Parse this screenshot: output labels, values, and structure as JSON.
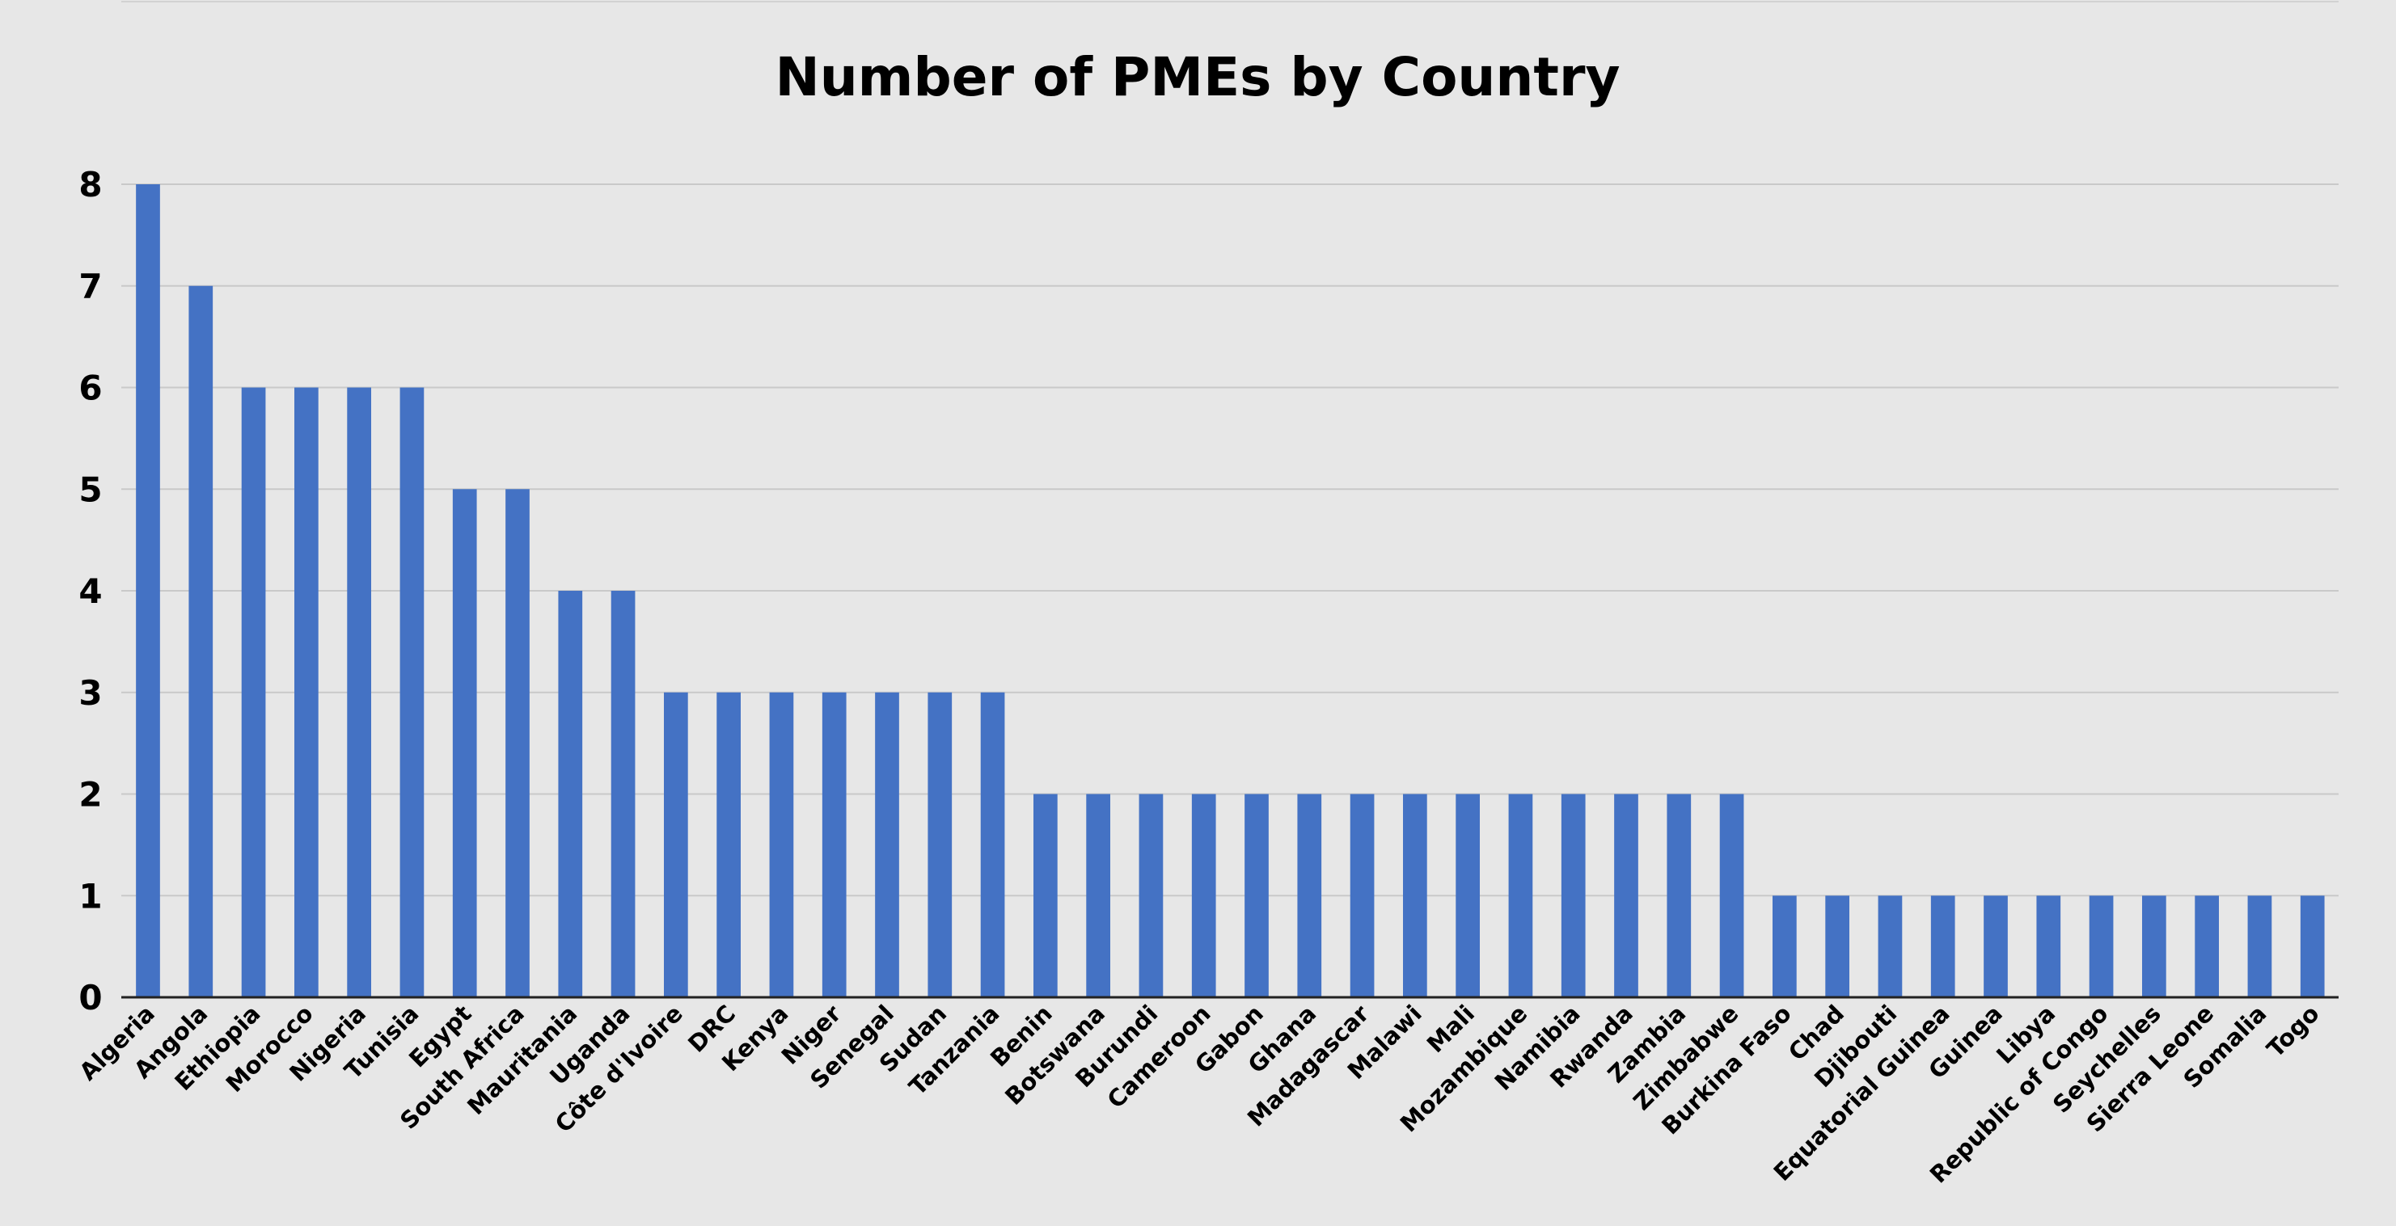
{
  "chart_data": {
    "type": "bar",
    "title": "Number of PMEs by Country",
    "xlabel": "",
    "ylabel": "",
    "ylim": [
      0,
      8
    ],
    "yticks": [
      0,
      1,
      2,
      3,
      4,
      5,
      6,
      7,
      8
    ],
    "grid": true,
    "legend": "none",
    "categories": [
      "Algeria",
      "Angola",
      "Ethiopia",
      "Morocco",
      "Nigeria",
      "Tunisia",
      "Egypt",
      "South Africa",
      "Mauritania",
      "Uganda",
      "Côte d'Ivoire",
      "DRC",
      "Kenya",
      "Niger",
      "Senegal",
      "Sudan",
      "Tanzania",
      "Benin",
      "Botswana",
      "Burundi",
      "Cameroon",
      "Gabon",
      "Ghana",
      "Madagascar",
      "Malawi",
      "Mali",
      "Mozambique",
      "Namibia",
      "Rwanda",
      "Zambia",
      "Zimbabwe",
      "Burkina Faso",
      "Chad",
      "Djibouti",
      "Equatorial Guinea",
      "Guinea",
      "Libya",
      "Republic of Congo",
      "Seychelles",
      "Sierra Leone",
      "Somalia",
      "Togo"
    ],
    "values": [
      8,
      7,
      6,
      6,
      6,
      6,
      5,
      5,
      4,
      4,
      3,
      3,
      3,
      3,
      3,
      3,
      3,
      2,
      2,
      2,
      2,
      2,
      2,
      2,
      2,
      2,
      2,
      2,
      2,
      2,
      2,
      1,
      1,
      1,
      1,
      1,
      1,
      1,
      1,
      1,
      1,
      1
    ],
    "colors": {
      "bar": "#4472c4",
      "background": "#e7e7e7",
      "grid": "#c9c9c9",
      "axis": "#222222"
    }
  }
}
